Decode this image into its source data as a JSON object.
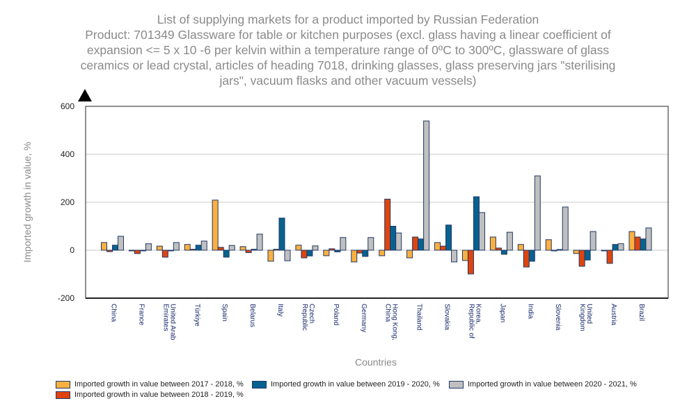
{
  "title_lines": [
    "List of supplying markets for a product imported by Russian Federation",
    "Product: 701349 Glassware for table or kitchen purposes (excl. glass having a linear coefficient of",
    "expansion <= 5 x 10 -6 per kelvin within a temperature range of 0ºC to 300ºC, glassware of glass",
    "ceramics or lead crystal, articles of heading 7018, drinking glasses, glass preserving jars \"sterilising",
    "jars\", vacuum flasks and other vacuum vessels)"
  ],
  "chart_data": {
    "type": "bar",
    "title": "List of supplying markets for a product imported by Russian Federation",
    "xlabel": "Countries",
    "ylabel": "Imported growth in value, %",
    "ylim": [
      -200,
      600
    ],
    "yticks": [
      "-200",
      "0",
      "200",
      "400",
      "600"
    ],
    "grid": true,
    "legend_position": "bottom",
    "categories": [
      "China",
      "France",
      "United Arab Emirates",
      "Türkiye",
      "Spain",
      "Belarus",
      "Italy",
      "Czech Republic",
      "Poland",
      "Germany",
      "Hong Kong, China",
      "Thailand",
      "Slovakia",
      "Korea, Republic of",
      "Japan",
      "India",
      "Slovenia",
      "United Kingdom",
      "Austria",
      "Brazil"
    ],
    "category_label_lines": [
      [
        "China"
      ],
      [
        "France"
      ],
      [
        "United Arab",
        "Emirates"
      ],
      [
        "Türkiye"
      ],
      [
        "Spain"
      ],
      [
        "Belarus"
      ],
      [
        "Italy"
      ],
      [
        "Czech",
        "Republic"
      ],
      [
        "Poland"
      ],
      [
        "Germany"
      ],
      [
        "Hong Kong,",
        "China"
      ],
      [
        "Thailand"
      ],
      [
        "Slovakia"
      ],
      [
        "Korea,",
        "Republic of"
      ],
      [
        "Japan"
      ],
      [
        "India"
      ],
      [
        "Slovenia"
      ],
      [
        "United",
        "Kingdom"
      ],
      [
        "Austria"
      ],
      [
        "Brazil"
      ]
    ],
    "series": [
      {
        "name": "Imported growth in value between 2017 - 2018, %",
        "color": "#fbb040",
        "values": [
          32,
          -1,
          17,
          24,
          209,
          15,
          -46,
          21,
          -23,
          -49,
          -23,
          -32,
          32,
          -43,
          55,
          24,
          44,
          -14,
          -1,
          78
        ]
      },
      {
        "name": "Imported growth in value between 2018 - 2019, %",
        "color": "#e0440e",
        "values": [
          -6,
          -14,
          -29,
          4,
          12,
          -10,
          4,
          -32,
          6,
          -12,
          213,
          55,
          17,
          -99,
          9,
          -70,
          0,
          -67,
          -55,
          55
        ]
      },
      {
        "name": "Imported growth in value between 2019 - 2020, %",
        "color": "#08628f",
        "values": [
          21,
          -1,
          -1,
          21,
          -29,
          4,
          134,
          -24,
          -7,
          -26,
          100,
          47,
          105,
          223,
          -17,
          -46,
          3,
          -41,
          24,
          47
        ]
      },
      {
        "name": "Imported growth in value between 2020 - 2021, %",
        "color": "#c0c0c0",
        "values": [
          58,
          27,
          32,
          38,
          20,
          67,
          -44,
          18,
          53,
          53,
          72,
          539,
          -49,
          157,
          75,
          310,
          180,
          78,
          27,
          93
        ]
      }
    ]
  }
}
